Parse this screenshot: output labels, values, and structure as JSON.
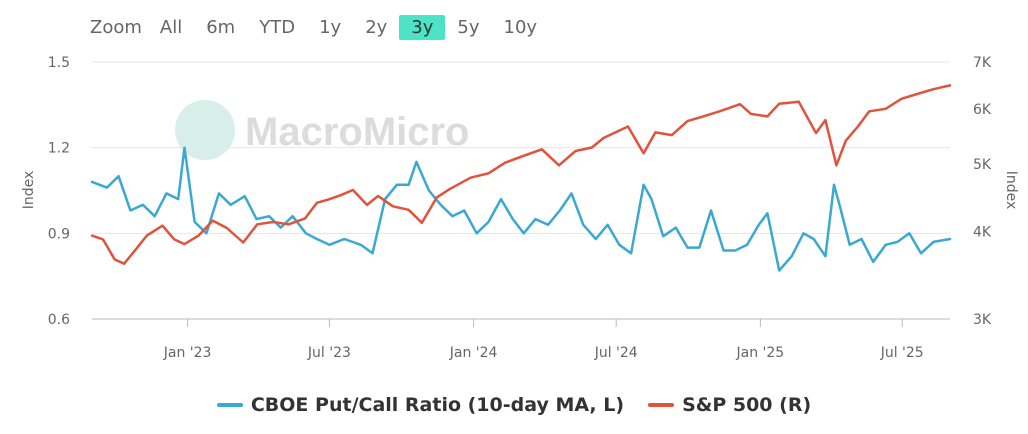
{
  "toolbar": {
    "zoom_label": "Zoom",
    "buttons": [
      "All",
      "6m",
      "YTD",
      "1y",
      "2y",
      "3y",
      "5y",
      "10y"
    ],
    "active": "3y",
    "active_color": "#4de3c6"
  },
  "watermark": "MacroMicro",
  "chart_data": {
    "type": "line",
    "x_ticks": [
      "Jan '23",
      "Jul '23",
      "Jan '24",
      "Jul '24",
      "Jan '25",
      "Jul '25"
    ],
    "x_tick_dates": [
      "2023-01-01",
      "2023-07-01",
      "2024-01-01",
      "2024-07-01",
      "2025-01-01",
      "2025-07-01"
    ],
    "x_range": [
      "2022-09-01",
      "2025-08-31"
    ],
    "y_left": {
      "label": "Index",
      "ticks": [
        "0.6",
        "0.9",
        "1.2",
        "1.5"
      ],
      "range": [
        0.6,
        1.5
      ]
    },
    "y_right": {
      "label": "Index",
      "ticks": [
        "3K",
        "4K",
        "5K",
        "6K",
        "7K"
      ],
      "tick_values": [
        3000,
        4000,
        5000,
        6000,
        7000
      ],
      "range": [
        3000,
        7000
      ],
      "scale": "log"
    },
    "grid": "horizontal",
    "legend_position": "bottom-center",
    "series": [
      {
        "name": "CBOE Put/Call Ratio (10-day MA, L)",
        "axis": "left",
        "color": "#3aa9d2",
        "x": [
          "2022-09-01",
          "2022-09-20",
          "2022-10-05",
          "2022-10-20",
          "2022-11-05",
          "2022-11-20",
          "2022-12-05",
          "2022-12-20",
          "2022-12-28",
          "2023-01-10",
          "2023-01-25",
          "2023-02-10",
          "2023-02-25",
          "2023-03-15",
          "2023-03-30",
          "2023-04-15",
          "2023-04-30",
          "2023-05-15",
          "2023-06-01",
          "2023-06-15",
          "2023-07-01",
          "2023-07-20",
          "2023-08-10",
          "2023-08-25",
          "2023-09-10",
          "2023-09-25",
          "2023-10-10",
          "2023-10-20",
          "2023-11-05",
          "2023-11-20",
          "2023-12-05",
          "2023-12-20",
          "2024-01-05",
          "2024-01-20",
          "2024-02-05",
          "2024-02-20",
          "2024-03-05",
          "2024-03-20",
          "2024-04-05",
          "2024-04-20",
          "2024-05-05",
          "2024-05-20",
          "2024-06-05",
          "2024-06-20",
          "2024-07-05",
          "2024-07-20",
          "2024-08-05",
          "2024-08-15",
          "2024-08-30",
          "2024-09-15",
          "2024-09-30",
          "2024-10-15",
          "2024-10-30",
          "2024-11-15",
          "2024-11-30",
          "2024-12-15",
          "2024-12-30",
          "2025-01-10",
          "2025-01-25",
          "2025-02-10",
          "2025-02-25",
          "2025-03-10",
          "2025-03-25",
          "2025-04-05",
          "2025-04-12",
          "2025-04-25",
          "2025-05-10",
          "2025-05-25",
          "2025-06-10",
          "2025-06-25",
          "2025-07-10",
          "2025-07-25",
          "2025-08-10",
          "2025-08-31"
        ],
        "values": [
          1.08,
          1.06,
          1.1,
          0.98,
          1.0,
          0.96,
          1.04,
          1.02,
          1.2,
          0.94,
          0.9,
          1.04,
          1.0,
          1.03,
          0.95,
          0.96,
          0.92,
          0.96,
          0.9,
          0.88,
          0.86,
          0.88,
          0.86,
          0.83,
          1.02,
          1.07,
          1.07,
          1.15,
          1.05,
          1.0,
          0.96,
          0.98,
          0.9,
          0.94,
          1.02,
          0.95,
          0.9,
          0.95,
          0.93,
          0.98,
          1.04,
          0.93,
          0.88,
          0.93,
          0.86,
          0.83,
          1.07,
          1.02,
          0.89,
          0.92,
          0.85,
          0.85,
          0.98,
          0.84,
          0.84,
          0.86,
          0.93,
          0.97,
          0.77,
          0.82,
          0.9,
          0.88,
          0.82,
          1.07,
          1.0,
          0.86,
          0.88,
          0.8,
          0.86,
          0.87,
          0.9,
          0.83,
          0.87,
          0.88
        ]
      },
      {
        "name": "S&P 500 (R)",
        "axis": "right",
        "color": "#e0533c",
        "x": [
          "2022-09-01",
          "2022-09-15",
          "2022-09-30",
          "2022-10-12",
          "2022-10-25",
          "2022-11-10",
          "2022-11-30",
          "2022-12-15",
          "2022-12-28",
          "2023-01-15",
          "2023-02-02",
          "2023-02-20",
          "2023-03-13",
          "2023-03-31",
          "2023-04-20",
          "2023-05-10",
          "2023-05-31",
          "2023-06-15",
          "2023-06-30",
          "2023-07-15",
          "2023-07-31",
          "2023-08-18",
          "2023-09-01",
          "2023-09-20",
          "2023-10-10",
          "2023-10-27",
          "2023-11-15",
          "2023-12-01",
          "2023-12-28",
          "2024-01-20",
          "2024-02-10",
          "2024-03-01",
          "2024-03-28",
          "2024-04-19",
          "2024-05-10",
          "2024-05-31",
          "2024-06-15",
          "2024-07-16",
          "2024-08-05",
          "2024-08-20",
          "2024-09-10",
          "2024-09-30",
          "2024-10-20",
          "2024-11-10",
          "2024-12-06",
          "2024-12-20",
          "2025-01-10",
          "2025-01-25",
          "2025-02-19",
          "2025-03-13",
          "2025-03-25",
          "2025-04-08",
          "2025-04-20",
          "2025-05-05",
          "2025-05-20",
          "2025-06-10",
          "2025-06-30",
          "2025-07-20",
          "2025-08-10",
          "2025-08-31"
        ],
        "values": [
          3950,
          3900,
          3650,
          3600,
          3750,
          3950,
          4080,
          3900,
          3840,
          3950,
          4150,
          4050,
          3860,
          4100,
          4130,
          4100,
          4180,
          4400,
          4450,
          4510,
          4590,
          4370,
          4500,
          4350,
          4300,
          4120,
          4480,
          4600,
          4780,
          4850,
          5020,
          5120,
          5250,
          4980,
          5220,
          5280,
          5450,
          5660,
          5180,
          5550,
          5500,
          5760,
          5850,
          5950,
          6090,
          5900,
          5850,
          6100,
          6140,
          5540,
          5780,
          4980,
          5400,
          5650,
          5950,
          6000,
          6200,
          6300,
          6400,
          6480
        ]
      }
    ]
  }
}
